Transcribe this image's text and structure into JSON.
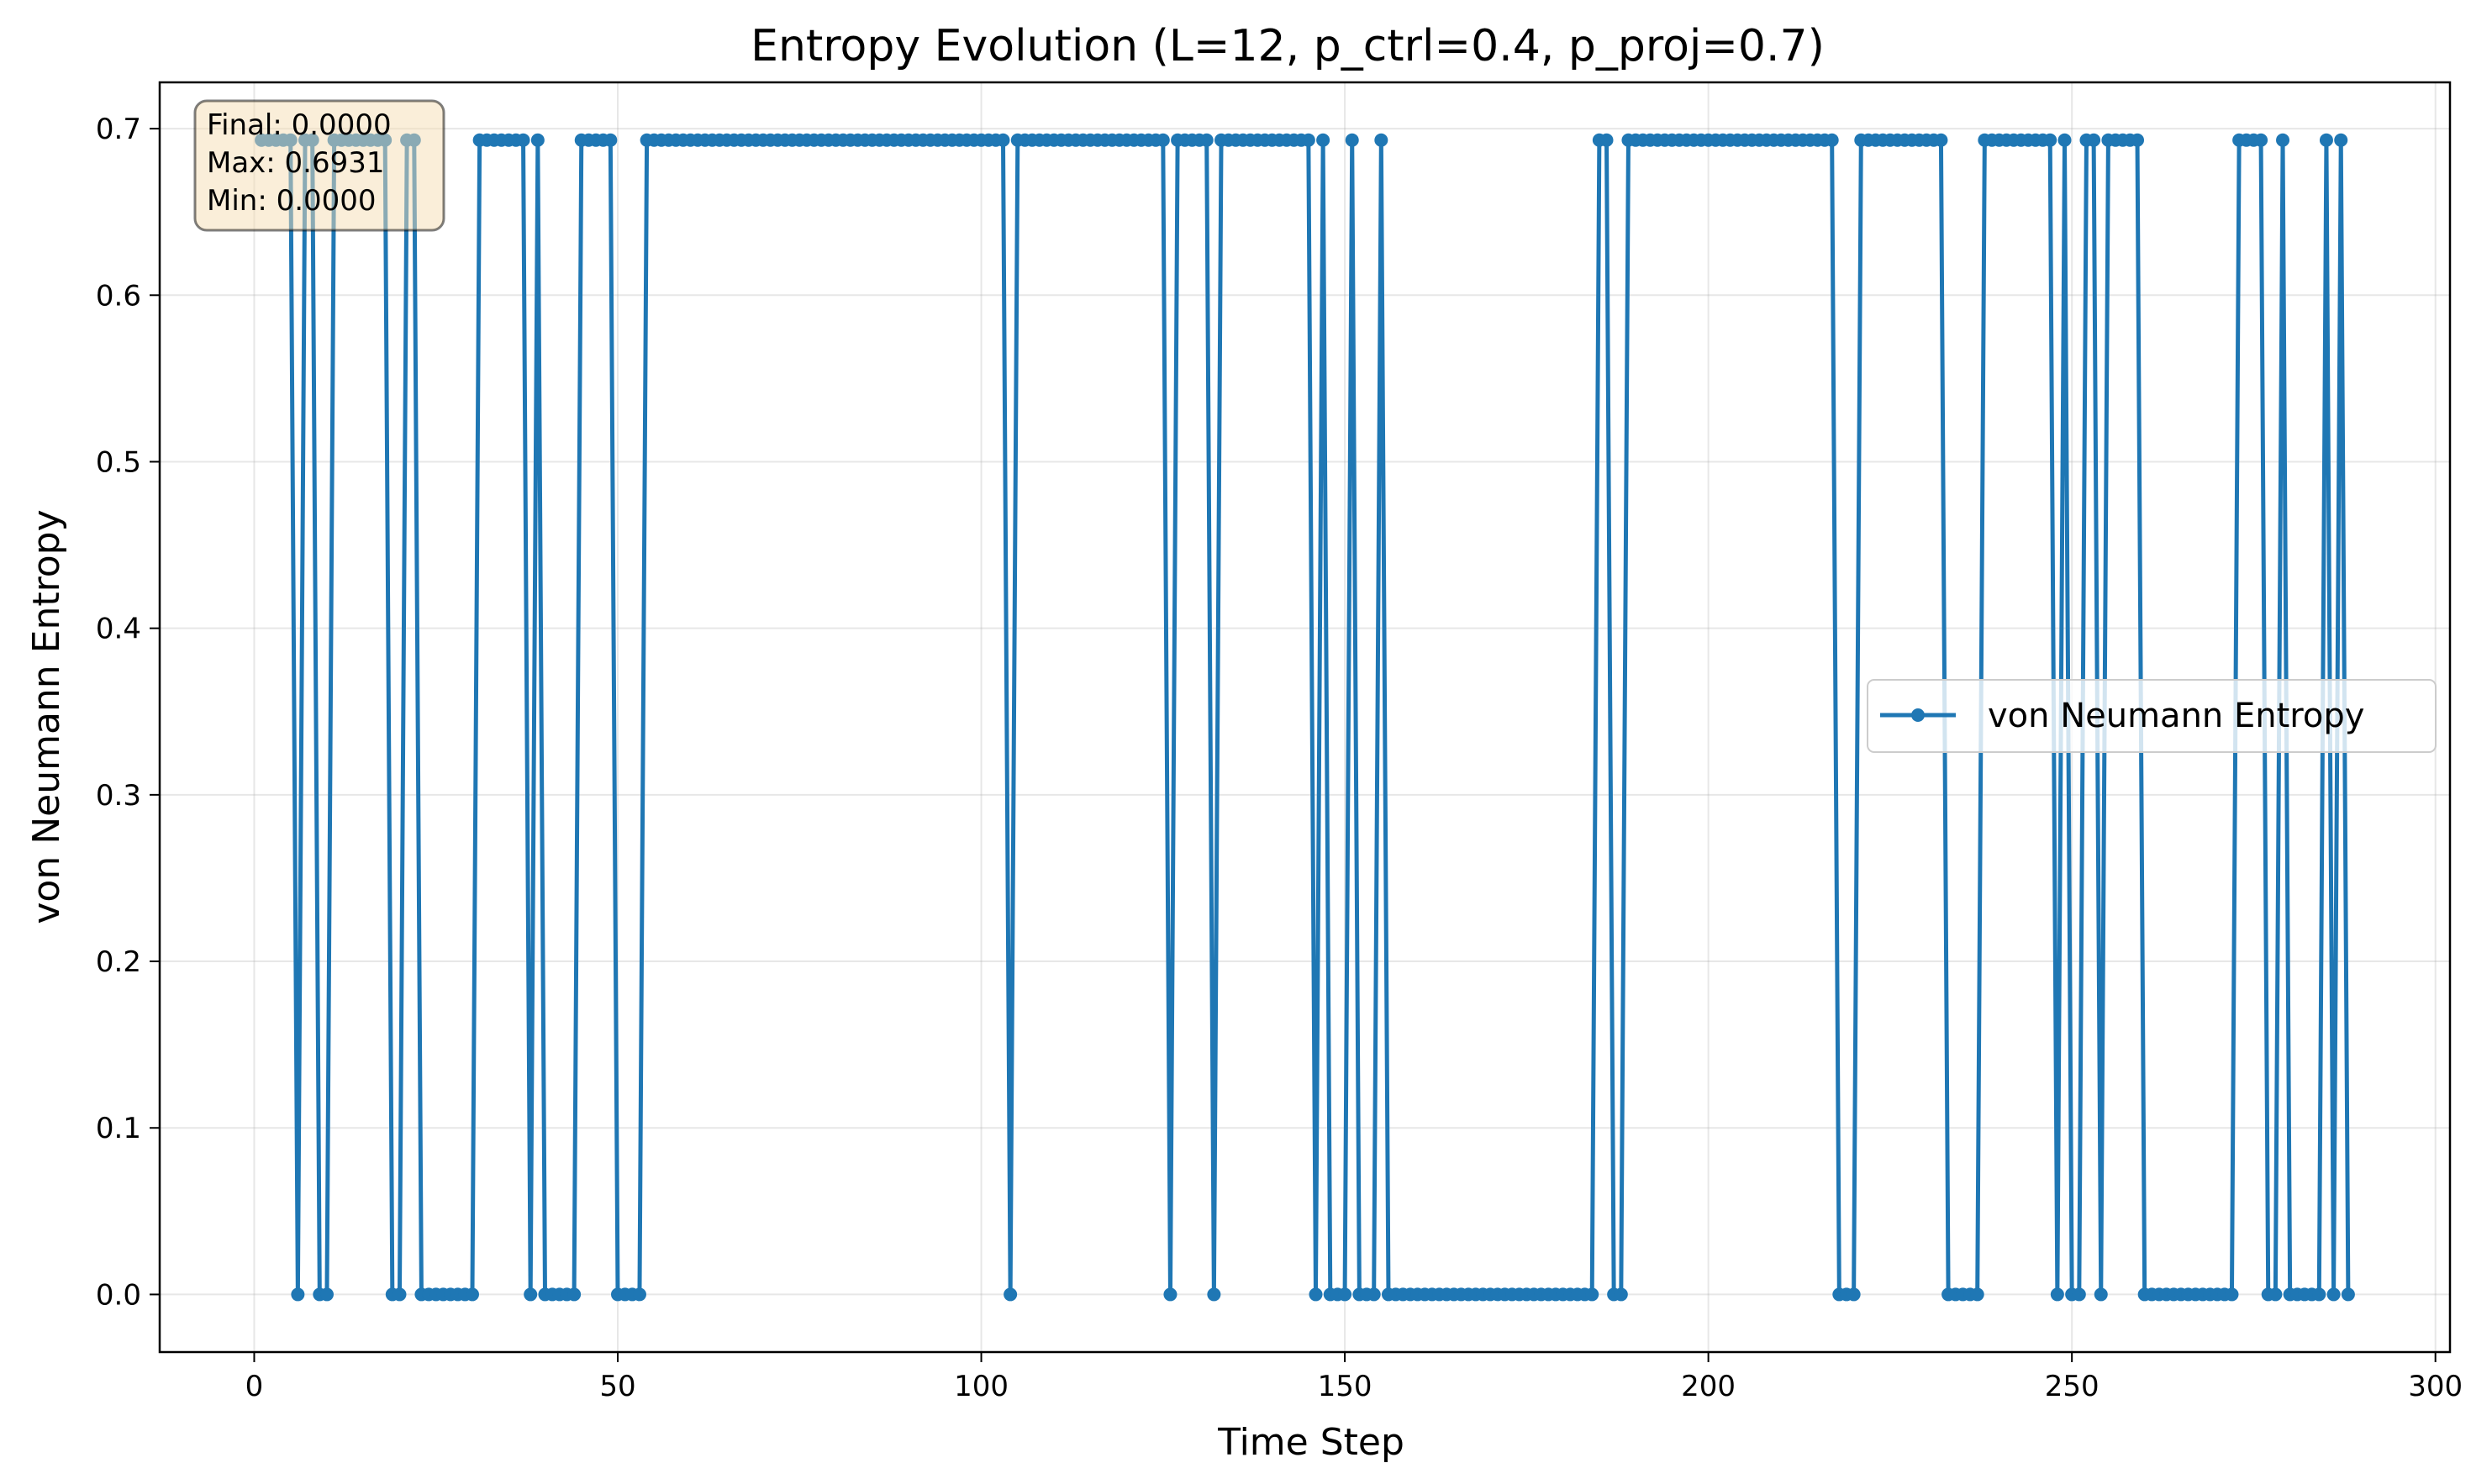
{
  "chart_data": {
    "type": "line",
    "title": "Entropy Evolution (L=12, p_ctrl=0.4, p_proj=0.7)",
    "xlabel": "Time Step",
    "ylabel": "von Neumann Entropy",
    "xlim": [
      -13,
      302
    ],
    "ylim": [
      -0.0346,
      0.7278
    ],
    "xticks": [
      0,
      50,
      100,
      150,
      200,
      250,
      300
    ],
    "xtick_labels": [
      "0",
      "50",
      "100",
      "150",
      "200",
      "250",
      "300"
    ],
    "yticks": [
      0.0,
      0.1,
      0.2,
      0.3,
      0.4,
      0.5,
      0.6,
      0.7
    ],
    "ytick_labels": [
      "0.0",
      "0.1",
      "0.2",
      "0.3",
      "0.4",
      "0.5",
      "0.6",
      "0.7"
    ],
    "grid": true,
    "legend_position": "center-right",
    "series": [
      {
        "name": "von Neumann Entropy",
        "color": "#1f77b4",
        "marker": "circle",
        "zero_steps": [
          6,
          9,
          10,
          19,
          20,
          23,
          24,
          25,
          26,
          27,
          28,
          29,
          30,
          38,
          40,
          41,
          42,
          43,
          44,
          50,
          51,
          52,
          53,
          104,
          126,
          132,
          146,
          148,
          149,
          150,
          152,
          153,
          154,
          156,
          157,
          158,
          159,
          160,
          161,
          162,
          163,
          164,
          165,
          166,
          167,
          168,
          169,
          170,
          171,
          172,
          173,
          174,
          175,
          176,
          177,
          178,
          179,
          180,
          181,
          182,
          183,
          184,
          187,
          188,
          218,
          219,
          220,
          233,
          234,
          235,
          236,
          237,
          248,
          250,
          251,
          254,
          260,
          261,
          262,
          263,
          264,
          265,
          266,
          267,
          268,
          269,
          270,
          271,
          272,
          277,
          278,
          280,
          281,
          282,
          283,
          284,
          286,
          288
        ],
        "x_start": 1,
        "x_end": 288,
        "y_high": 0.6931,
        "y_low": 0.0
      }
    ]
  },
  "stats_box": {
    "final": "Final: 0.0000",
    "max": "Max: 0.6931",
    "min": "Min: 0.0000"
  },
  "colors": {
    "series": "#1f77b4",
    "stats_box_fill": "#f5deb3",
    "stats_box_edge": "#000000"
  }
}
